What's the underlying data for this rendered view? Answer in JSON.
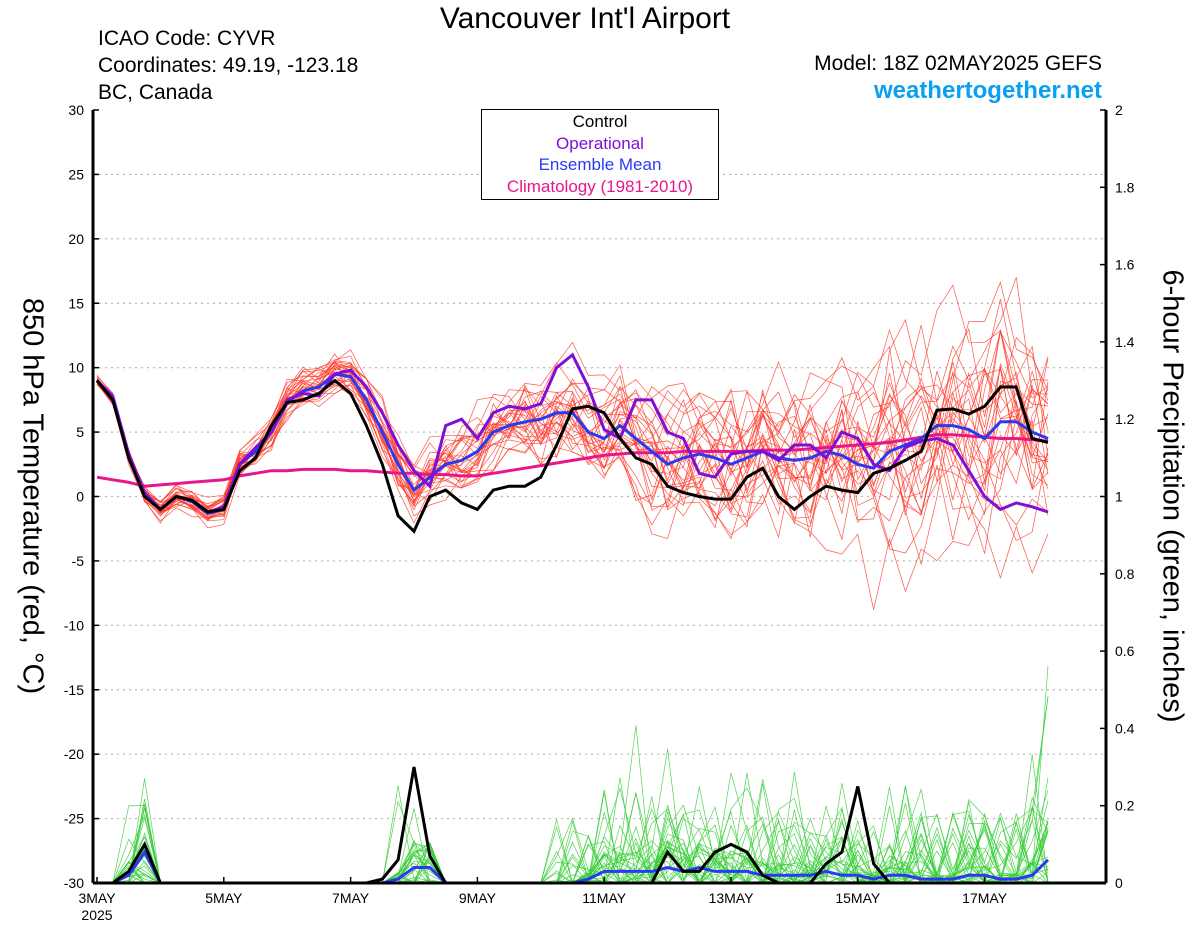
{
  "header": {
    "title": "Vancouver Int'l Airport",
    "icao": "ICAO Code: CYVR",
    "coords": "Coordinates: 49.19, -123.18",
    "region": "BC, Canada",
    "model": "Model: 18Z 02MAY2025 GEFS",
    "site": "weathertogether.net"
  },
  "legend": {
    "control": "Control",
    "operational": "Operational",
    "mean": "Ensemble Mean",
    "climatology": "Climatology (1981-2010)"
  },
  "colors": {
    "control": "#000000",
    "operational": "#7f0fd6",
    "mean": "#2a3af0",
    "climatology": "#e8168c",
    "members_temp": "#ff3a2a",
    "members_precip": "#32cd32",
    "site": "#0aa0f0",
    "grid": "#b4b4b4"
  },
  "chart_data": {
    "type": "line",
    "xlabel": "",
    "ylabel_left": "850 hPa Temperature (red, °C)",
    "ylabel_right": "6-hour Precipitation (green, inches)",
    "grid": true,
    "legend_position": "top-center",
    "x_start": "3MAY 2025 00Z",
    "x_step_hours": 6,
    "ylim_left": [
      -30,
      30
    ],
    "ylim_right": [
      0,
      2
    ],
    "yticks_left": [
      "30",
      "25",
      "20",
      "15",
      "10",
      "5",
      "0",
      "-5",
      "-10",
      "-15",
      "-20",
      "-25",
      "-30"
    ],
    "yticks_right": [
      "2",
      "1.8",
      "1.6",
      "1.4",
      "1.2",
      "1",
      "0.8",
      "0.6",
      "0.4",
      "0.2",
      "0"
    ],
    "xticks": [
      {
        "i": 0,
        "label": "3MAY",
        "sub": "2025"
      },
      {
        "i": 8,
        "label": "5MAY"
      },
      {
        "i": 16,
        "label": "7MAY"
      },
      {
        "i": 24,
        "label": "9MAY"
      },
      {
        "i": 32,
        "label": "11MAY"
      },
      {
        "i": 40,
        "label": "13MAY"
      },
      {
        "i": 48,
        "label": "15MAY"
      },
      {
        "i": 56,
        "label": "17MAY"
      }
    ],
    "temperature": {
      "control": [
        9.0,
        7.5,
        3.0,
        0.0,
        -1.0,
        0.0,
        -0.3,
        -1.2,
        -1.0,
        2.0,
        3.0,
        5.5,
        7.3,
        7.5,
        8.0,
        9.0,
        8.0,
        5.5,
        2.5,
        -1.5,
        -2.7,
        0.0,
        0.5,
        -0.5,
        -1.0,
        0.5,
        0.8,
        0.8,
        1.5,
        4.0,
        6.8,
        7.0,
        6.5,
        4.5,
        3.0,
        2.5,
        0.8,
        0.3,
        0.0,
        -0.2,
        -0.2,
        1.5,
        2.2,
        0.0,
        -1.0,
        0.0,
        0.8,
        0.5,
        0.3,
        1.8,
        2.2,
        2.8,
        3.5,
        6.7,
        6.8,
        6.4,
        7.0,
        8.5,
        8.5,
        4.5,
        4.2
      ],
      "operational": [
        9.0,
        7.8,
        3.3,
        0.3,
        -1.0,
        0.0,
        -0.3,
        -1.2,
        -0.8,
        2.5,
        3.8,
        5.0,
        7.5,
        8.0,
        7.8,
        9.5,
        9.8,
        8.5,
        6.5,
        4.0,
        2.0,
        0.8,
        5.5,
        6.0,
        4.5,
        6.5,
        7.0,
        6.8,
        7.2,
        10.0,
        11.0,
        8.5,
        5.2,
        4.5,
        7.5,
        7.5,
        5.0,
        4.5,
        1.8,
        1.5,
        3.3,
        3.5,
        3.5,
        2.8,
        4.0,
        4.0,
        3.0,
        5.0,
        4.5,
        2.5,
        2.0,
        3.8,
        4.3,
        4.5,
        4.0,
        2.0,
        0.0,
        -1.0,
        -0.5,
        -0.8,
        -1.2
      ],
      "mean": [
        9.0,
        7.5,
        3.2,
        0.2,
        -1.0,
        0.0,
        -0.4,
        -1.3,
        -1.0,
        2.5,
        3.5,
        5.0,
        7.3,
        8.2,
        8.5,
        9.5,
        9.3,
        7.5,
        5.0,
        2.5,
        0.5,
        1.5,
        2.5,
        2.8,
        3.5,
        5.0,
        5.5,
        5.8,
        6.0,
        6.5,
        6.5,
        5.0,
        4.5,
        5.5,
        4.5,
        3.5,
        2.5,
        3.0,
        3.3,
        3.0,
        2.5,
        3.0,
        3.5,
        3.0,
        2.8,
        3.0,
        3.5,
        3.2,
        2.5,
        2.2,
        3.5,
        4.0,
        4.5,
        5.5,
        5.5,
        5.2,
        4.5,
        5.8,
        5.8,
        5.0,
        4.5
      ],
      "climatology": [
        1.5,
        1.3,
        1.1,
        0.8,
        0.9,
        1.0,
        1.1,
        1.2,
        1.3,
        1.6,
        1.8,
        2.0,
        2.0,
        2.1,
        2.1,
        2.1,
        2.0,
        2.0,
        1.9,
        1.8,
        1.8,
        1.7,
        1.7,
        1.6,
        1.6,
        1.8,
        2.0,
        2.2,
        2.4,
        2.6,
        2.8,
        3.0,
        3.2,
        3.3,
        3.4,
        3.4,
        3.4,
        3.5,
        3.5,
        3.5,
        3.5,
        3.5,
        3.6,
        3.6,
        3.6,
        3.7,
        3.8,
        3.9,
        4.0,
        4.1,
        4.2,
        4.4,
        4.6,
        4.8,
        4.8,
        4.7,
        4.6,
        4.5,
        4.5,
        4.4,
        4.3
      ]
    },
    "precipitation": {
      "control": [
        0,
        0,
        0.03,
        0.1,
        0,
        0,
        0,
        0,
        0,
        0,
        0,
        0,
        0,
        0,
        0,
        0,
        0,
        0,
        0.01,
        0.06,
        0.3,
        0.07,
        0,
        0,
        0,
        0,
        0,
        0,
        0,
        0,
        0,
        0,
        0,
        0,
        0,
        0,
        0.08,
        0.03,
        0.03,
        0.08,
        0.1,
        0.08,
        0.02,
        0,
        0,
        0,
        0.05,
        0.08,
        0.25,
        0.05,
        0,
        0,
        0,
        0,
        0,
        0,
        0,
        0,
        0,
        0,
        0
      ],
      "mean": [
        0,
        0,
        0.02,
        0.08,
        0,
        0,
        0,
        0,
        0,
        0,
        0,
        0,
        0,
        0,
        0,
        0,
        0,
        0,
        0,
        0.01,
        0.04,
        0.04,
        0,
        0,
        0,
        0,
        0,
        0,
        0,
        0,
        0,
        0.01,
        0.03,
        0.03,
        0.03,
        0.03,
        0.04,
        0.03,
        0.04,
        0.03,
        0.03,
        0.03,
        0.02,
        0.02,
        0.02,
        0.02,
        0.03,
        0.02,
        0.02,
        0.01,
        0.02,
        0.02,
        0.01,
        0.01,
        0.01,
        0.02,
        0.02,
        0.01,
        0.01,
        0.02,
        0.06
      ]
    }
  }
}
